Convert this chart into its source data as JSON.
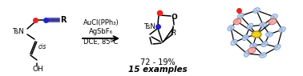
{
  "bg_color": "#ffffff",
  "bond_color": "#000000",
  "red_dot": "#ee2222",
  "blue_dot": "#2222cc",
  "reagent1": "AuCl(PPh₃)",
  "reagent2": "AgSbF₆",
  "reagent3": "DCE, 85ºC",
  "yield_text": "72 - 19%",
  "examples_text": "15 examples",
  "cis_text": "cis",
  "r_label": "R",
  "oh_label": "OH",
  "ts_label": "TsN",
  "o_label": "O",
  "ir_label": "iR",
  "fig_width": 3.78,
  "fig_height": 0.95,
  "dpi": 100
}
